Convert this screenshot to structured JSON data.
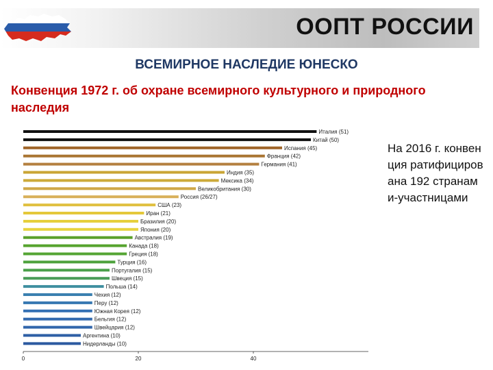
{
  "header": {
    "title": "ООПТ РОССИИ"
  },
  "subtitle": "ВСЕМИРНОЕ НАСЛЕДИЕ ЮНЕСКО",
  "convention": "Конвенция 1972 г. об охране всемирного культурного и природного наследия",
  "side_note": "На 2016 г. конвенция ратифицирована 192 странами-участницами",
  "colors": {
    "flag_white": "#ffffff",
    "flag_blue": "#2a5caa",
    "flag_red": "#d52b1e",
    "title_blue": "#1f3864",
    "convention_red": "#c00000"
  },
  "chart_data": {
    "type": "bar",
    "orientation": "horizontal",
    "categories": [
      "Италия (51)",
      "Китай (50)",
      "Испания (45)",
      "Франция (42)",
      "Германия (41)",
      "Индия (35)",
      "Мексика (34)",
      "Великобритания (30)",
      "Россия (26/27)",
      "США (23)",
      "Иран (21)",
      "Бразилия (20)",
      "Япония (20)",
      "Австралия (19)",
      "Канада (18)",
      "Греция (18)",
      "Турция (16)",
      "Португалия (15)",
      "Швеция (15)",
      "Польша (14)",
      "Чехия (12)",
      "Перу (12)",
      "Южная Корея (12)",
      "Бельгия (12)",
      "Швейцария (12)",
      "Аргентина (10)",
      "Нидерланды (10)"
    ],
    "values": [
      51,
      50,
      45,
      42,
      41,
      35,
      34,
      30,
      27,
      23,
      21,
      20,
      20,
      19,
      18,
      18,
      16,
      15,
      15,
      14,
      12,
      12,
      12,
      12,
      12,
      10,
      10
    ],
    "colors": [
      "#111111",
      "#111111",
      "#a0662a",
      "#a97532",
      "#b48040",
      "#c9a535",
      "#ccaa3a",
      "#cfa848",
      "#d8b05a",
      "#e0c040",
      "#e4c83a",
      "#e6cf3a",
      "#e8d440",
      "#5aa02a",
      "#56a32e",
      "#55a534",
      "#4da23c",
      "#4a9f4a",
      "#4a9d58",
      "#3f8fa0",
      "#3a80b0",
      "#3778b2",
      "#3470b3",
      "#336aaf",
      "#3166ab",
      "#2e5fa5",
      "#2c5aa0"
    ],
    "xticks": [
      0,
      20,
      40
    ],
    "xlim": [
      0,
      60
    ]
  }
}
